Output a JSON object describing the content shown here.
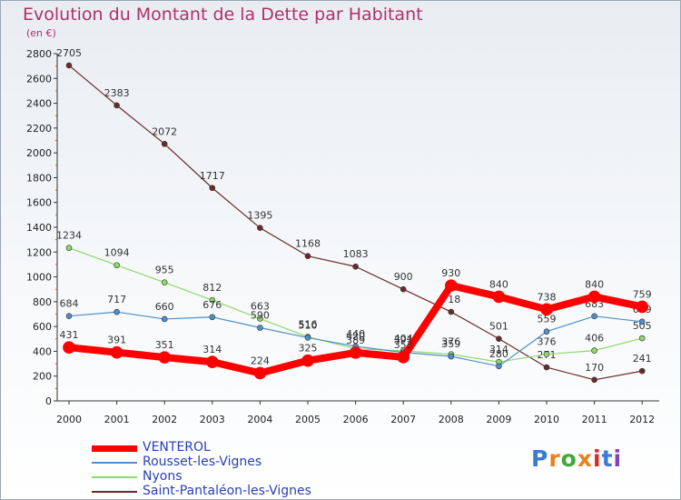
{
  "chart_data": {
    "type": "line",
    "title": "Evolution du Montant de la Dette par Habitant",
    "subtitle": "(en €)",
    "xlabel": "",
    "ylabel": "",
    "x": [
      "2000",
      "2001",
      "2002",
      "2003",
      "2004",
      "2005",
      "2006",
      "2007",
      "2008",
      "2009",
      "2010",
      "2011",
      "2012"
    ],
    "ylim": [
      0,
      2800
    ],
    "yticks": [
      0,
      200,
      400,
      600,
      800,
      1000,
      1200,
      1400,
      1600,
      1800,
      2000,
      2200,
      2400,
      2600,
      2800
    ],
    "grid": false,
    "legend_position": "bottom-left",
    "series": [
      {
        "name": "VENTEROL",
        "color": "#ff0000",
        "width": 8,
        "values": [
          431,
          391,
          351,
          314,
          224,
          325,
          389,
          353,
          930,
          840,
          738,
          840,
          759
        ]
      },
      {
        "name": "Rousset-les-Vignes",
        "color": "#4f8fc9",
        "width": 1.2,
        "values": [
          684,
          717,
          660,
          676,
          590,
          510,
          440,
          391,
          359,
          280,
          559,
          683,
          639
        ]
      },
      {
        "name": "Nyons",
        "color": "#8fd86b",
        "width": 1.2,
        "values": [
          1234,
          1094,
          955,
          812,
          663,
          516,
          420,
          404,
          376,
          314,
          376,
          406,
          505
        ]
      },
      {
        "name": "Saint-Pantaléon-les-Vignes",
        "color": "#6b2a2a",
        "width": 1.2,
        "values": [
          2705,
          2383,
          2072,
          1717,
          1395,
          1168,
          1083,
          900,
          718,
          501,
          271,
          170,
          241
        ]
      }
    ]
  },
  "logo": {
    "text": "Proxiti",
    "colors": [
      "#3a7bd5",
      "#e8821e",
      "#3fa93a",
      "#e8821e",
      "#d62d20",
      "#3a7bd5",
      "#8a3fb5"
    ]
  }
}
